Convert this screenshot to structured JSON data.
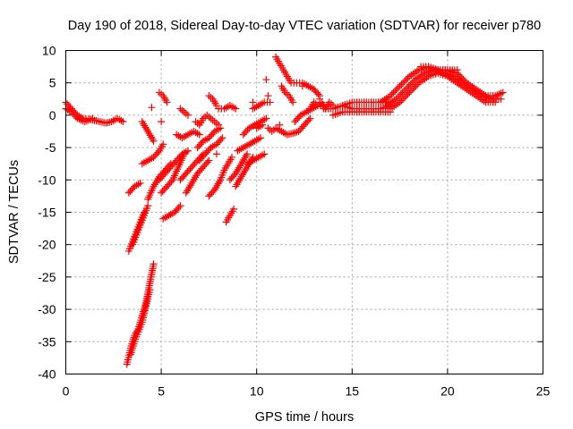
{
  "chart_data": {
    "type": "scatter",
    "title": "Day 190 of 2018, Sidereal Day-to-day VTEC variation (SDTVAR) for receiver p780",
    "xlabel": "GPS time / hours",
    "ylabel": "SDTVAR / TECUs",
    "xlim": [
      0,
      25
    ],
    "ylim": [
      -40,
      10
    ],
    "x_ticks": [
      0,
      5,
      10,
      15,
      20,
      25
    ],
    "y_ticks": [
      10,
      5,
      0,
      -5,
      -10,
      -15,
      -20,
      -25,
      -30,
      -35,
      -40
    ],
    "grid": true,
    "marker": "+",
    "color": "#ff0000",
    "series_segments": [
      {
        "x": [
          0.0,
          0.3,
          0.6,
          0.9,
          1.2,
          1.5,
          1.8,
          2.1,
          2.4,
          2.7,
          3.0
        ],
        "y": [
          2.0,
          1.0,
          0.0,
          -0.5,
          -0.6,
          -0.8,
          -1.0,
          -1.2,
          -1.0,
          -0.5,
          -1.0
        ]
      },
      {
        "x": [
          0.0,
          0.3,
          0.6,
          1.0,
          1.4
        ],
        "y": [
          1.0,
          0.5,
          -0.5,
          -1.0,
          -0.5
        ]
      },
      {
        "x": [
          3.2,
          3.4,
          3.6,
          3.8,
          4.0,
          4.2,
          4.4,
          4.6
        ],
        "y": [
          -38.5,
          -36.0,
          -34.0,
          -33.0,
          -31.0,
          -29.0,
          -26.0,
          -23.0
        ]
      },
      {
        "x": [
          3.4,
          3.6,
          3.8,
          4.0,
          4.2,
          4.4
        ],
        "y": [
          -37.0,
          -35.0,
          -33.5,
          -32.0,
          -29.5,
          -27.0
        ]
      },
      {
        "x": [
          3.3,
          3.5,
          3.7,
          3.9,
          4.1
        ],
        "y": [
          -21.0,
          -19.5,
          -18.0,
          -16.5,
          -15.0
        ]
      },
      {
        "x": [
          3.5,
          3.7,
          3.9,
          4.1,
          4.3
        ],
        "y": [
          -20.0,
          -18.5,
          -17.0,
          -15.5,
          -14.0
        ]
      },
      {
        "x": [
          3.3,
          3.6,
          3.9
        ],
        "y": [
          -12.0,
          -11.0,
          -10.5
        ]
      },
      {
        "x": [
          4.0,
          4.3,
          4.6,
          4.9,
          5.1
        ],
        "y": [
          -7.5,
          -7.0,
          -6.5,
          -5.5,
          -4.5
        ]
      },
      {
        "x": [
          4.3,
          4.6,
          4.9,
          5.2,
          5.5
        ],
        "y": [
          -13.0,
          -11.0,
          -9.5,
          -8.5,
          -7.5
        ]
      },
      {
        "x": [
          4.0,
          4.3,
          4.6
        ],
        "y": [
          -1.0,
          -2.5,
          -4.0
        ]
      },
      {
        "x": [
          4.9,
          5.1,
          5.3
        ],
        "y": [
          3.5,
          3.0,
          2.0
        ]
      },
      {
        "x": [
          4.9,
          5.2,
          5.5,
          5.8,
          6.1,
          6.4
        ],
        "y": [
          -10.0,
          -9.0,
          -8.0,
          -7.0,
          -6.0,
          -5.5
        ]
      },
      {
        "x": [
          5.0,
          5.3,
          5.6,
          5.9,
          6.2
        ],
        "y": [
          -12.0,
          -11.0,
          -10.0,
          -8.0,
          -6.0
        ]
      },
      {
        "x": [
          5.1,
          5.4,
          5.7,
          6.0
        ],
        "y": [
          -16.0,
          -15.5,
          -15.0,
          -14.0
        ]
      },
      {
        "x": [
          5.8,
          6.1,
          6.4,
          6.7,
          7.0
        ],
        "y": [
          -3.0,
          -3.5,
          -3.0,
          -2.5,
          -3.0
        ]
      },
      {
        "x": [
          6.0,
          6.3,
          6.6,
          6.9,
          7.2
        ],
        "y": [
          -10.0,
          -9.0,
          -8.0,
          -7.0,
          -6.0
        ]
      },
      {
        "x": [
          6.3,
          6.6,
          6.9,
          7.2,
          7.5
        ],
        "y": [
          -12.0,
          -10.5,
          -9.0,
          -8.0,
          -7.0
        ]
      },
      {
        "x": [
          6.0,
          6.2,
          6.4
        ],
        "y": [
          1.0,
          0.5,
          0.0
        ]
      },
      {
        "x": [
          6.8,
          7.0,
          7.2,
          7.4,
          7.6,
          7.8,
          8.0
        ],
        "y": [
          -1.0,
          -1.5,
          -0.5,
          0.0,
          -0.5,
          -1.0,
          -1.5
        ]
      },
      {
        "x": [
          6.9,
          7.2,
          7.5,
          7.8,
          8.1
        ],
        "y": [
          -5.0,
          -4.0,
          -3.5,
          -2.5,
          -2.0
        ]
      },
      {
        "x": [
          7.0,
          7.3,
          7.6,
          7.9,
          8.2
        ],
        "y": [
          -7.0,
          -6.0,
          -5.0,
          -4.5,
          -3.5
        ]
      },
      {
        "x": [
          7.5,
          7.8,
          8.1
        ],
        "y": [
          -12.5,
          -11.5,
          -10.0
        ]
      },
      {
        "x": [
          7.5,
          7.7,
          7.9
        ],
        "y": [
          3.0,
          2.5,
          1.5
        ]
      },
      {
        "x": [
          8.0,
          8.3,
          8.6,
          8.9
        ],
        "y": [
          1.0,
          1.0,
          1.5,
          1.0
        ]
      },
      {
        "x": [
          8.1,
          8.3,
          8.5,
          8.7
        ],
        "y": [
          -10.0,
          -8.5,
          -7.5,
          -6.5
        ]
      },
      {
        "x": [
          8.4,
          8.6,
          8.8
        ],
        "y": [
          -16.5,
          -15.5,
          -14.5
        ]
      },
      {
        "x": [
          8.6,
          8.9,
          9.2,
          9.5
        ],
        "y": [
          -10.0,
          -9.0,
          -7.5,
          -6.0
        ]
      },
      {
        "x": [
          8.9,
          9.2,
          9.5,
          9.8
        ],
        "y": [
          -11.0,
          -9.5,
          -8.0,
          -6.5
        ]
      },
      {
        "x": [
          9.0,
          9.3,
          9.6,
          9.9,
          10.2
        ],
        "y": [
          -5.5,
          -5.0,
          -4.5,
          -4.0,
          -3.5
        ]
      },
      {
        "x": [
          9.3,
          9.6,
          9.9,
          10.2,
          10.5
        ],
        "y": [
          -3.0,
          -2.0,
          -1.5,
          -1.0,
          -0.5
        ]
      },
      {
        "x": [
          9.5,
          9.8,
          10.1,
          10.4
        ],
        "y": [
          -7.5,
          -7.0,
          -6.5,
          -6.0
        ]
      },
      {
        "x": [
          9.8,
          10.1,
          10.4,
          10.7
        ],
        "y": [
          1.0,
          1.5,
          2.0,
          2.0
        ]
      },
      {
        "x": [
          10.0,
          10.3
        ],
        "y": [
          -2.0,
          -1.5
        ]
      },
      {
        "x": [
          10.6,
          10.8,
          11.0,
          11.3,
          11.6,
          11.9,
          12.2,
          12.5,
          12.8
        ],
        "y": [
          -2.0,
          -2.5,
          -2.0,
          -2.5,
          -3.0,
          -2.8,
          -2.5,
          -1.5,
          -0.5
        ]
      },
      {
        "x": [
          11.0,
          11.2,
          11.4,
          11.6,
          11.8,
          12.1,
          12.4,
          12.7,
          13.0,
          13.3
        ],
        "y": [
          9.0,
          8.0,
          7.0,
          6.0,
          5.0,
          5.0,
          5.0,
          4.5,
          4.0,
          3.0
        ]
      },
      {
        "x": [
          11.3,
          11.5,
          11.7,
          11.9
        ],
        "y": [
          4.5,
          3.5,
          3.0,
          2.0
        ]
      },
      {
        "x": [
          12.0,
          12.3,
          12.6,
          12.9,
          13.2,
          13.5
        ],
        "y": [
          -1.0,
          0.0,
          0.5,
          1.0,
          1.5,
          1.5
        ]
      },
      {
        "x": [
          12.8,
          13.0,
          13.2,
          13.4,
          13.6,
          13.8,
          14.0
        ],
        "y": [
          1.0,
          2.0,
          1.5,
          2.0,
          1.0,
          2.0,
          1.5
        ]
      },
      {
        "x": [
          13.5,
          14.0,
          14.5,
          15.0,
          15.5,
          16.0,
          16.5,
          17.0
        ],
        "y": [
          1.0,
          1.0,
          1.5,
          2.0,
          2.0,
          2.0,
          2.0,
          2.0
        ]
      },
      {
        "x": [
          14.0,
          14.5,
          15.0,
          15.5,
          16.0,
          16.5,
          17.0
        ],
        "y": [
          0.0,
          0.5,
          0.5,
          0.5,
          0.5,
          0.5,
          0.5
        ]
      },
      {
        "x": [
          14.5,
          15.0,
          15.5,
          16.0,
          16.5,
          17.0
        ],
        "y": [
          1.5,
          1.0,
          1.0,
          1.0,
          1.0,
          1.5
        ]
      },
      {
        "x": [
          16.5,
          17.0,
          17.5,
          18.0,
          18.5,
          19.0,
          19.5,
          20.0,
          20.5,
          21.0,
          21.5,
          22.0,
          22.5,
          22.9
        ],
        "y": [
          2.0,
          3.0,
          4.5,
          6.0,
          7.0,
          7.5,
          7.0,
          7.0,
          6.5,
          5.0,
          4.0,
          3.0,
          3.0,
          3.5
        ]
      },
      {
        "x": [
          16.8,
          17.3,
          17.8,
          18.3,
          18.8,
          19.3,
          19.8,
          20.3,
          20.8,
          21.3,
          21.8,
          22.3,
          22.8
        ],
        "y": [
          1.5,
          2.5,
          4.0,
          5.5,
          6.5,
          7.0,
          6.5,
          6.0,
          5.0,
          4.0,
          3.0,
          2.5,
          2.5
        ]
      },
      {
        "x": [
          17.0,
          17.5,
          18.0,
          18.5,
          19.0,
          19.5,
          20.0,
          20.5,
          21.0,
          21.5,
          22.0,
          22.5
        ],
        "y": [
          1.0,
          2.0,
          3.5,
          5.0,
          6.0,
          6.5,
          6.0,
          5.0,
          4.0,
          3.0,
          2.0,
          2.0
        ]
      },
      {
        "x": [
          18.6,
          19.0,
          19.5,
          20.0,
          20.5
        ],
        "y": [
          7.5,
          7.5,
          7.0,
          7.0,
          7.0
        ]
      }
    ],
    "scattered_points": {
      "x": [
        4.5,
        5.0,
        7.9,
        9.8,
        10.5,
        10.6,
        11.2,
        12.4,
        13.3
      ],
      "y": [
        1.2,
        -1.0,
        -6.0,
        2.0,
        5.5,
        3.0,
        -1.5,
        4.5,
        2.5
      ]
    }
  }
}
